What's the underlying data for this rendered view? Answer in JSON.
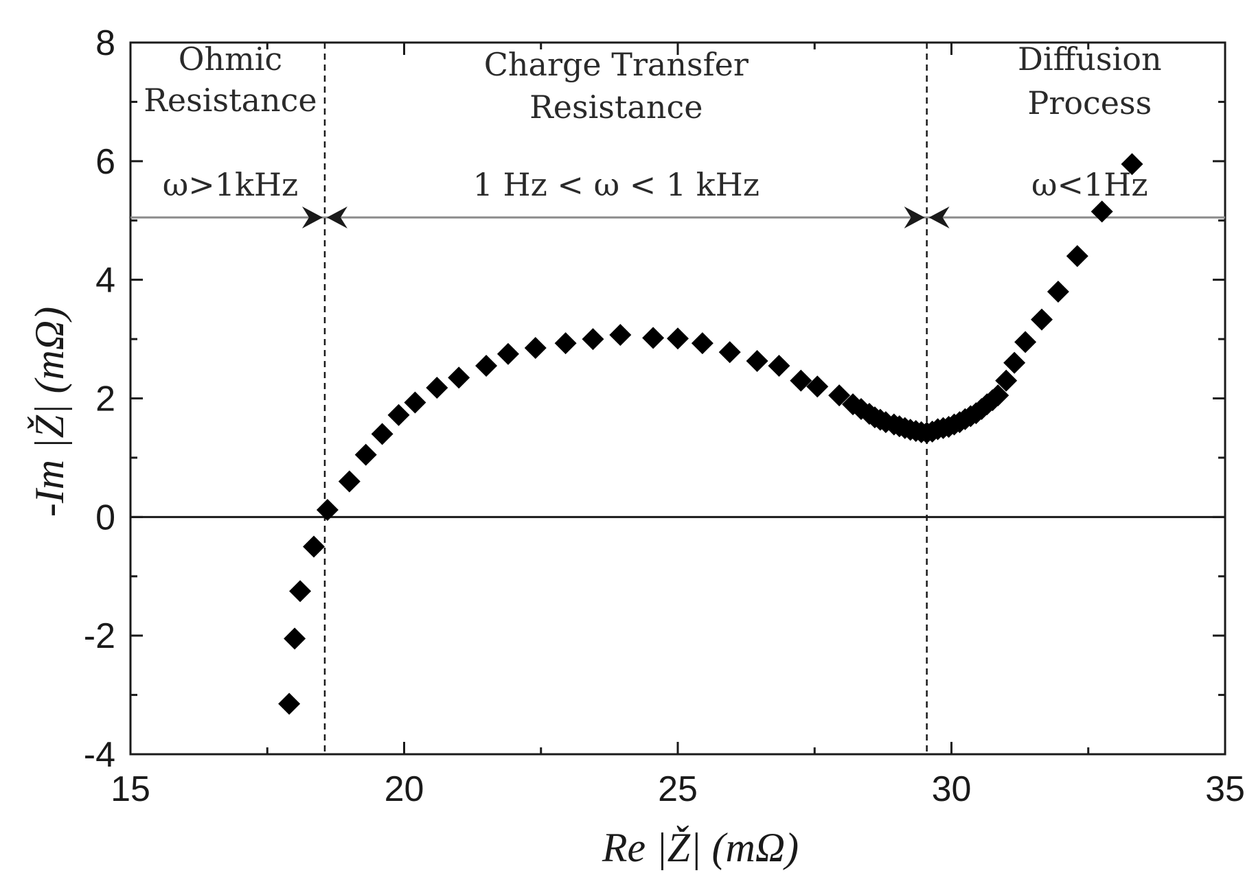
{
  "chart_data": {
    "type": "scatter",
    "title": "",
    "xlabel": "Re |Ž| (mΩ)",
    "ylabel": "-Im |Ž| (mΩ)",
    "xlim": [
      15,
      35
    ],
    "ylim": [
      -4,
      8
    ],
    "xticks": [
      15,
      20,
      25,
      30,
      35
    ],
    "yticks": [
      -4,
      -2,
      0,
      2,
      4,
      6,
      8
    ],
    "marker": "diamond",
    "marker_color": "#000000",
    "zero_line": 0,
    "frequency_boundary_y": 5.05,
    "dividers_x": [
      18.55,
      29.55
    ],
    "regions": [
      {
        "name": "ohmic",
        "lines": [
          "Ohmic",
          "Resistance"
        ],
        "frequency": "ω>1kHz",
        "x_range": [
          15,
          18.55
        ]
      },
      {
        "name": "charge-transfer",
        "lines": [
          "Charge Transfer",
          "Resistance"
        ],
        "frequency": "1 Hz < ω < 1 kHz",
        "x_range": [
          18.55,
          29.55
        ]
      },
      {
        "name": "diffusion",
        "lines": [
          "Diffusion",
          "Process"
        ],
        "frequency": "ω<1Hz",
        "x_range": [
          29.55,
          35
        ]
      }
    ],
    "series": [
      {
        "name": "impedance",
        "points": [
          [
            17.9,
            -3.15
          ],
          [
            18.0,
            -2.05
          ],
          [
            18.1,
            -1.25
          ],
          [
            18.35,
            -0.5
          ],
          [
            18.6,
            0.12
          ],
          [
            19.0,
            0.6
          ],
          [
            19.3,
            1.05
          ],
          [
            19.6,
            1.4
          ],
          [
            19.9,
            1.72
          ],
          [
            20.2,
            1.93
          ],
          [
            20.6,
            2.18
          ],
          [
            21.0,
            2.35
          ],
          [
            21.5,
            2.55
          ],
          [
            21.9,
            2.75
          ],
          [
            22.4,
            2.85
          ],
          [
            22.95,
            2.93
          ],
          [
            23.45,
            3.0
          ],
          [
            23.95,
            3.07
          ],
          [
            24.55,
            3.02
          ],
          [
            25.0,
            3.01
          ],
          [
            25.45,
            2.93
          ],
          [
            25.95,
            2.78
          ],
          [
            26.45,
            2.63
          ],
          [
            26.85,
            2.55
          ],
          [
            27.25,
            2.3
          ],
          [
            27.55,
            2.2
          ],
          [
            27.95,
            2.05
          ],
          [
            28.2,
            1.9
          ],
          [
            28.35,
            1.82
          ],
          [
            28.5,
            1.74
          ],
          [
            28.6,
            1.68
          ],
          [
            28.7,
            1.64
          ],
          [
            28.8,
            1.6
          ],
          [
            28.95,
            1.56
          ],
          [
            29.05,
            1.53
          ],
          [
            29.15,
            1.5
          ],
          [
            29.25,
            1.47
          ],
          [
            29.35,
            1.45
          ],
          [
            29.45,
            1.43
          ],
          [
            29.55,
            1.42
          ],
          [
            29.65,
            1.44
          ],
          [
            29.75,
            1.48
          ],
          [
            29.85,
            1.5
          ],
          [
            29.95,
            1.52
          ],
          [
            30.05,
            1.56
          ],
          [
            30.15,
            1.6
          ],
          [
            30.25,
            1.65
          ],
          [
            30.35,
            1.7
          ],
          [
            30.45,
            1.75
          ],
          [
            30.55,
            1.82
          ],
          [
            30.65,
            1.9
          ],
          [
            30.75,
            1.97
          ],
          [
            30.85,
            2.05
          ],
          [
            31.0,
            2.3
          ],
          [
            31.15,
            2.6
          ],
          [
            31.35,
            2.95
          ],
          [
            31.65,
            3.33
          ],
          [
            31.95,
            3.8
          ],
          [
            32.3,
            4.4
          ],
          [
            32.75,
            5.15
          ],
          [
            33.3,
            5.95
          ]
        ]
      }
    ]
  }
}
